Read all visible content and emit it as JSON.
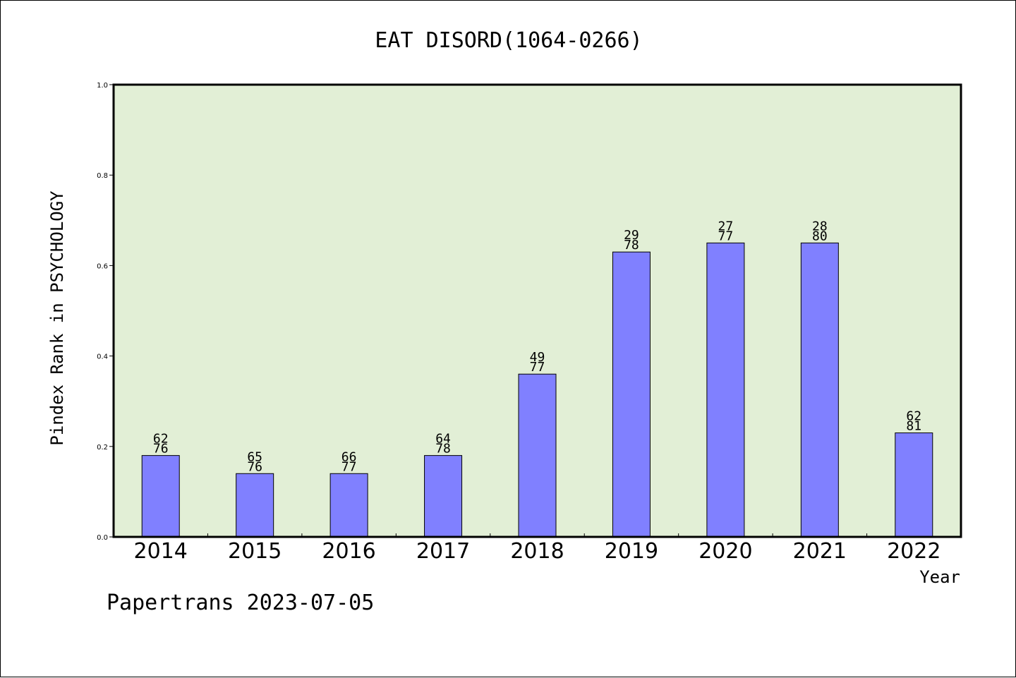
{
  "footer_text": "Papertrans 2023-07-05",
  "chart_data": {
    "type": "bar",
    "title": "EAT DISORD(1064-0266)",
    "xlabel": "Year",
    "ylabel": "Pindex Rank in PSYCHOLOGY",
    "categories": [
      "2014",
      "2015",
      "2016",
      "2017",
      "2018",
      "2019",
      "2020",
      "2021",
      "2022"
    ],
    "values": [
      0.18,
      0.14,
      0.14,
      0.18,
      0.36,
      0.63,
      0.65,
      0.65,
      0.23
    ],
    "bar_labels": [
      [
        "62",
        "76"
      ],
      [
        "65",
        "76"
      ],
      [
        "66",
        "77"
      ],
      [
        "64",
        "78"
      ],
      [
        "49",
        "77"
      ],
      [
        "29",
        "78"
      ],
      [
        "27",
        "77"
      ],
      [
        "28",
        "80"
      ],
      [
        "62",
        "81"
      ]
    ],
    "ylim": [
      0,
      1.0
    ],
    "yticks": [
      "0.0",
      "0.2",
      "0.4",
      "0.6",
      "0.8",
      "1.0"
    ],
    "grid": false,
    "colors": {
      "plot_background": "#e2efd6",
      "bar_fill": "#8080ff",
      "bar_stroke": "#000000",
      "axis": "#000000"
    }
  }
}
